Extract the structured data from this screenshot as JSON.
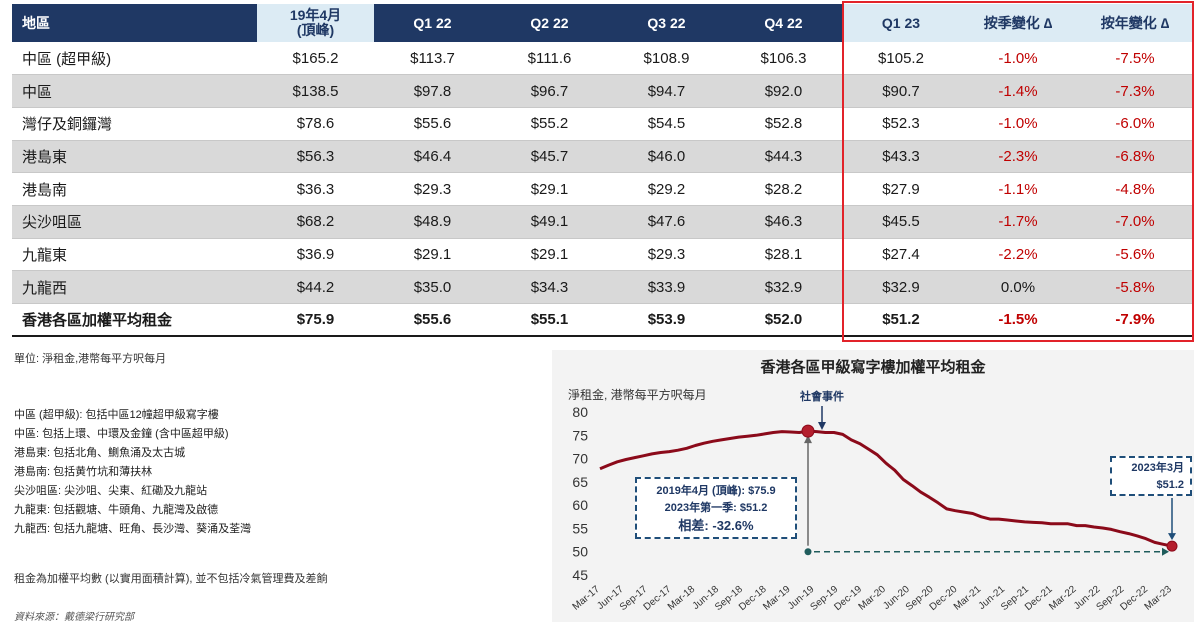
{
  "table": {
    "headers": {
      "region": "地區",
      "peak": "19年4月\n(頂峰)",
      "q1_22": "Q1 22",
      "q2_22": "Q2 22",
      "q3_22": "Q3 22",
      "q4_22": "Q4 22",
      "q1_23": "Q1 23",
      "qoq": "按季變化 ∆",
      "yoy": "按年變化 ∆"
    },
    "rows": [
      {
        "region": "中區 (超甲級)",
        "peak": "$165.2",
        "q1_22": "$113.7",
        "q2_22": "$111.6",
        "q3_22": "$108.9",
        "q4_22": "$106.3",
        "q1_23": "$105.2",
        "qoq": "-1.0%",
        "yoy": "-7.5%"
      },
      {
        "region": "中區",
        "peak": "$138.5",
        "q1_22": "$97.8",
        "q2_22": "$96.7",
        "q3_22": "$94.7",
        "q4_22": "$92.0",
        "q1_23": "$90.7",
        "qoq": "-1.4%",
        "yoy": "-7.3%"
      },
      {
        "region": "灣仔及銅鑼灣",
        "peak": "$78.6",
        "q1_22": "$55.6",
        "q2_22": "$55.2",
        "q3_22": "$54.5",
        "q4_22": "$52.8",
        "q1_23": "$52.3",
        "qoq": "-1.0%",
        "yoy": "-6.0%"
      },
      {
        "region": "港島東",
        "peak": "$56.3",
        "q1_22": "$46.4",
        "q2_22": "$45.7",
        "q3_22": "$46.0",
        "q4_22": "$44.3",
        "q1_23": "$43.3",
        "qoq": "-2.3%",
        "yoy": "-6.8%"
      },
      {
        "region": "港島南",
        "peak": "$36.3",
        "q1_22": "$29.3",
        "q2_22": "$29.1",
        "q3_22": "$29.2",
        "q4_22": "$28.2",
        "q1_23": "$27.9",
        "qoq": "-1.1%",
        "yoy": "-4.8%"
      },
      {
        "region": "尖沙咀區",
        "peak": "$68.2",
        "q1_22": "$48.9",
        "q2_22": "$49.1",
        "q3_22": "$47.6",
        "q4_22": "$46.3",
        "q1_23": "$45.5",
        "qoq": "-1.7%",
        "yoy": "-7.0%"
      },
      {
        "region": "九龍東",
        "peak": "$36.9",
        "q1_22": "$29.1",
        "q2_22": "$29.1",
        "q3_22": "$29.3",
        "q4_22": "$28.1",
        "q1_23": "$27.4",
        "qoq": "-2.2%",
        "yoy": "-5.6%"
      },
      {
        "region": "九龍西",
        "peak": "$44.2",
        "q1_22": "$35.0",
        "q2_22": "$34.3",
        "q3_22": "$33.9",
        "q4_22": "$32.9",
        "q1_23": "$32.9",
        "qoq": "0.0%",
        "yoy": "-5.8%"
      }
    ],
    "total": {
      "region": "香港各區加權平均租金",
      "peak": "$75.9",
      "q1_22": "$55.6",
      "q2_22": "$55.1",
      "q3_22": "$53.9",
      "q4_22": "$52.0",
      "q1_23": "$51.2",
      "qoq": "-1.5%",
      "yoy": "-7.9%"
    }
  },
  "notes": {
    "unit": "單位: 淨租金,港幣每平方呎每月",
    "definitions": [
      {
        "term": "中區 (超甲級)",
        "desc": ": 包括中區12幢超甲級寫字樓"
      },
      {
        "term": "中區",
        "desc": ": 包括上環、中環及金鐘 (含中區超甲級)"
      },
      {
        "term": "港島東",
        "desc": ": 包括北角、鰂魚涌及太古城"
      },
      {
        "term": "港島南",
        "desc": ": 包括黄竹坑和薄扶林"
      },
      {
        "term": "尖沙咀區",
        "desc": ": 尖沙咀、尖東、紅磡及九龍站"
      },
      {
        "term": "九龍東",
        "desc": ": 包括觀塘、牛頭角、九龍灣及啟德"
      },
      {
        "term": "九龍西",
        "desc": ": 包括九龍塘、旺角、長沙灣、葵涌及荃灣"
      }
    ],
    "avg_note": "租金為加權平均數 (以實用面積計算), 並不包括冷氣管理費及差餉",
    "source": "資料來源：戴德梁行研究部"
  },
  "colors": {
    "header_dark": "#1f3864",
    "header_light": "#dcebf4",
    "negative": "#c00000",
    "highlight_border": "#e2232a",
    "line": "#8b0a1a",
    "annotation": "#1f4e79"
  },
  "chart_data": {
    "type": "line",
    "title": "香港各區甲級寫字樓加權平均租金",
    "ylabel": "淨租金, 港幣每平方呎每月",
    "ylim": [
      45,
      80
    ],
    "yticks": [
      45,
      50,
      55,
      60,
      65,
      70,
      75,
      80
    ],
    "x_tick_labels": [
      "Mar-17",
      "Jun-17",
      "Sep-17",
      "Dec-17",
      "Mar-18",
      "Jun-18",
      "Sep-18",
      "Dec-18",
      "Mar-19",
      "Jun-19",
      "Sep-19",
      "Dec-19",
      "Mar-20",
      "Jun-20",
      "Sep-20",
      "Dec-20",
      "Mar-21",
      "Jun-21",
      "Sep-21",
      "Dec-21",
      "Mar-22",
      "Jun-22",
      "Sep-22",
      "Dec-22",
      "Mar-23"
    ],
    "series": [
      {
        "values": [
          67.8,
          68.6,
          69.3,
          69.8,
          70.2,
          70.6,
          71.0,
          71.3,
          71.5,
          71.8,
          72.2,
          72.8,
          73.3,
          73.7,
          74.0,
          74.3,
          74.6,
          74.8,
          75.0,
          75.3,
          75.6,
          75.8,
          75.7,
          75.6,
          75.9,
          75.8,
          75.6,
          75.6,
          75.2,
          74.0,
          73.2,
          72.0,
          70.8,
          69.0,
          67.5,
          65.5,
          64.2,
          62.8,
          61.7,
          60.5,
          59.2,
          58.8,
          58.5,
          58.2,
          57.5,
          57.0,
          57.0,
          56.8,
          56.6,
          56.4,
          56.3,
          56.2,
          56.0,
          56.0,
          56.0,
          55.6,
          55.6,
          55.3,
          55.1,
          54.8,
          54.3,
          53.9,
          53.4,
          52.8,
          52.0,
          51.6,
          51.2
        ]
      }
    ],
    "annotations": {
      "event": "社會事件",
      "peak_line1": "2019年4月 (頂峰): $75.9",
      "peak_line2": "2023年第一季: $51.2",
      "peak_diff": "相差: -32.6%",
      "latest_line1": "2023年3月",
      "latest_line2": "$51.2"
    },
    "grid": false
  }
}
